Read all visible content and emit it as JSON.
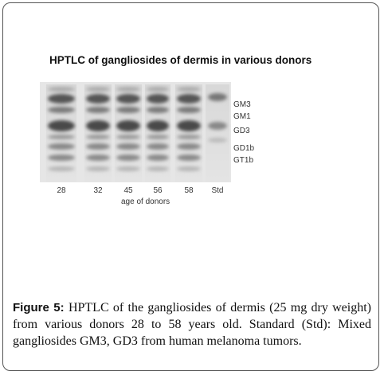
{
  "figure": {
    "title": "HPTLC of gangliosides of dermis in various donors",
    "lanes": [
      "28",
      "32",
      "45",
      "56",
      "58",
      "Std"
    ],
    "x_label": "age of donors",
    "bands": [
      "GM3",
      "GM1",
      "GD3",
      "GD1b",
      "GT1b"
    ]
  },
  "caption": {
    "label": "Figure 5:",
    "text": "HPTLC of the gangliosides of dermis (25 mg dry weight) from various donors 28 to 58 years old. Standard (Std): Mixed gangliosides GM3, GD3 from human melanoma tumors."
  }
}
